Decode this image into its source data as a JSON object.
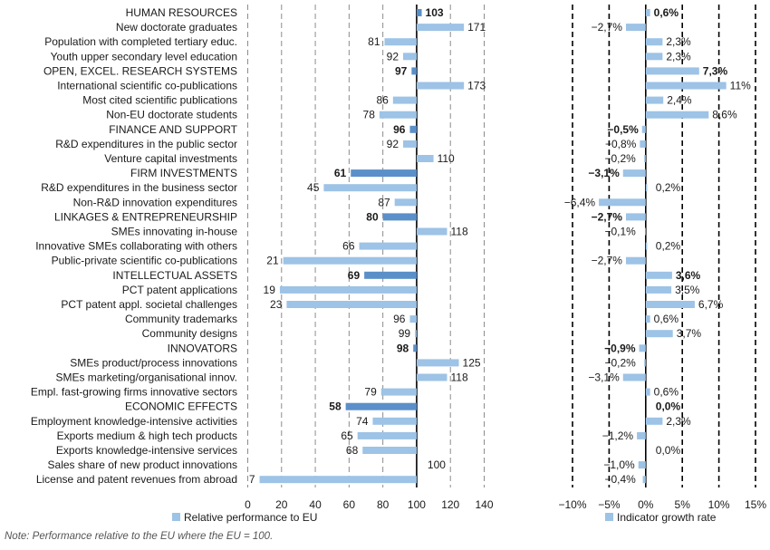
{
  "chart_data": [
    {
      "type": "bar",
      "orientation": "horizontal",
      "title": "",
      "xlabel": "",
      "legend": "Relative performance to EU",
      "xlim": [
        0,
        140
      ],
      "xticks": [
        0,
        20,
        40,
        60,
        80,
        100,
        120,
        140
      ],
      "reference": 100,
      "categories": [
        "HUMAN RESOURCES",
        "New doctorate graduates",
        "Population with completed tertiary educ.",
        "Youth upper secondary level education",
        "OPEN, EXCEL. RESEARCH SYSTEMS",
        "International scientific co-publications",
        "Most cited scientific publications",
        "Non-EU doctorate students",
        "FINANCE AND SUPPORT",
        "R&D expenditures in the public sector",
        "Venture capital investments",
        "FIRM INVESTMENTS",
        "R&D expenditures in the business sector",
        "Non-R&D innovation expenditures",
        "LINKAGES & ENTREPRENEURSHIP",
        "SMEs innovating in-house",
        "Innovative SMEs collaborating with others",
        "Public-private scientific co-publications",
        "INTELLECTUAL ASSETS",
        "PCT patent applications",
        "PCT patent appl. societal challenges",
        "Community trademarks",
        "Community designs",
        "INNOVATORS",
        "SMEs product/process innovations",
        "SMEs marketing/organisational innov.",
        "Empl. fast-growing firms innovative sectors",
        "ECONOMIC EFFECTS",
        "Employment knowledge-intensive activities",
        "Exports medium & high tech products",
        "Exports knowledge-intensive services",
        "Sales share of new product innovations",
        "License and patent revenues from abroad"
      ],
      "is_dimension": [
        true,
        false,
        false,
        false,
        true,
        false,
        false,
        false,
        true,
        false,
        false,
        true,
        false,
        false,
        true,
        false,
        false,
        false,
        true,
        false,
        false,
        false,
        false,
        true,
        false,
        false,
        false,
        true,
        false,
        false,
        false,
        false,
        false
      ],
      "values": [
        103,
        171,
        81,
        92,
        97,
        173,
        86,
        78,
        96,
        92,
        110,
        61,
        45,
        87,
        80,
        118,
        66,
        21,
        69,
        19,
        23,
        96,
        99,
        98,
        125,
        118,
        79,
        58,
        74,
        65,
        68,
        100,
        7
      ],
      "value_labels": [
        "103",
        "171",
        "81",
        "92",
        "97",
        "173",
        "86",
        "78",
        "96",
        "92",
        "110",
        "61",
        "45",
        "87",
        "80",
        "118",
        "66",
        "21",
        "69",
        "19",
        "23",
        "96",
        "99",
        "98",
        "125",
        "118",
        "79",
        "58",
        "74",
        "65",
        "68",
        "100",
        "7"
      ]
    },
    {
      "type": "bar",
      "orientation": "horizontal",
      "title": "",
      "xlabel": "",
      "legend": "Indicator growth rate",
      "xlim": [
        -10,
        15
      ],
      "xticks": [
        -10,
        -5,
        0,
        5,
        10,
        15
      ],
      "xtick_labels": [
        "−10%",
        "−5%",
        "0%",
        "5%",
        "10%",
        "15%"
      ],
      "values": [
        0.6,
        -2.7,
        2.3,
        2.3,
        7.3,
        11,
        2.4,
        8.6,
        -0.5,
        -0.8,
        -0.2,
        -3.1,
        0.2,
        -6.4,
        -2.7,
        -0.1,
        0.2,
        -2.7,
        3.6,
        3.5,
        6.7,
        0.6,
        3.7,
        -0.9,
        -0.2,
        -3.1,
        0.6,
        0.0,
        2.3,
        -1.2,
        0.0,
        -1.0,
        -0.4
      ],
      "value_labels": [
        "0,6%",
        "−2,7%",
        "2,3%",
        "2,3%",
        "7,3%",
        "11%",
        "2,4%",
        "8,6%",
        "−0,5%",
        "−0,8%",
        "−0,2%",
        "−3,1%",
        "0,2%",
        "−6,4%",
        "−2,7%",
        "−0,1%",
        "0,2%",
        "−2,7%",
        "3,6%",
        "3,5%",
        "6,7%",
        "0,6%",
        "3,7%",
        "−0,9%",
        "−0,2%",
        "−3,1%",
        "0,6%",
        "0,0%",
        "2,3%",
        "−1,2%",
        "0,0%",
        "−1,0%",
        "−0,4%"
      ]
    }
  ],
  "colors": {
    "bar_light": "#9dc3e6",
    "bar_dark": "#5b8fc9",
    "grid": "#8c8c8c",
    "zero_line": "#000000",
    "text": "#1a1a1a"
  },
  "note": "Note: Performance relative to the EU where the EU = 100."
}
